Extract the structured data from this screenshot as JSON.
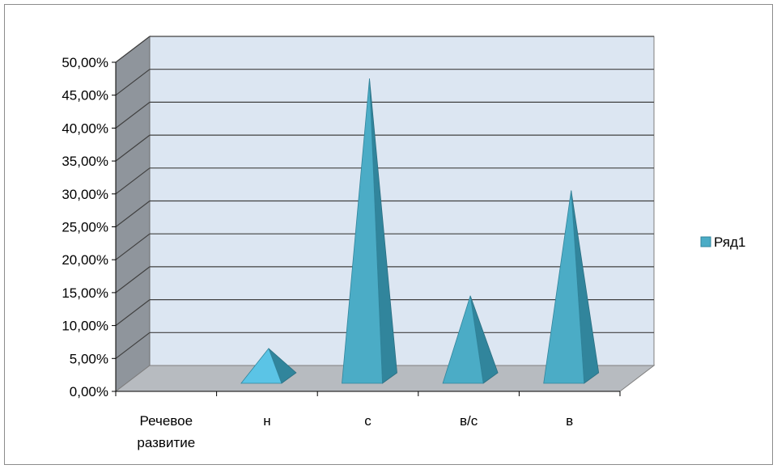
{
  "chart_data": {
    "type": "bar",
    "bar_shape": "pyramid",
    "three_d": true,
    "categories": [
      "Речевое развитие",
      "н",
      "с",
      "в/с",
      "в"
    ],
    "category_lines": [
      [
        "Речевое",
        "развитие"
      ],
      [
        "н"
      ],
      [
        "с"
      ],
      [
        "в/с"
      ],
      [
        "в"
      ]
    ],
    "series": [
      {
        "name": "Ряд1",
        "values": [
          0,
          0.08,
          0.49,
          0.16,
          0.32
        ]
      }
    ],
    "ylim": [
      0,
      0.5
    ],
    "yticks": [
      "0,00%",
      "5,00%",
      "10,00%",
      "15,00%",
      "20,00%",
      "25,00%",
      "30,00%",
      "35,00%",
      "40,00%",
      "45,00%",
      "50,00%"
    ],
    "ylabel": "",
    "xlabel": "",
    "title": "",
    "grid": true,
    "legend_position": "right",
    "colors": {
      "bar_front": "#4bacc6",
      "bar_light": "#5bc4e6",
      "bar_side": "#31859c",
      "back_wall": "#dce6f2",
      "side_wall": "#8f959c",
      "floor": "#b7bbc0",
      "grid": "#404040"
    }
  }
}
